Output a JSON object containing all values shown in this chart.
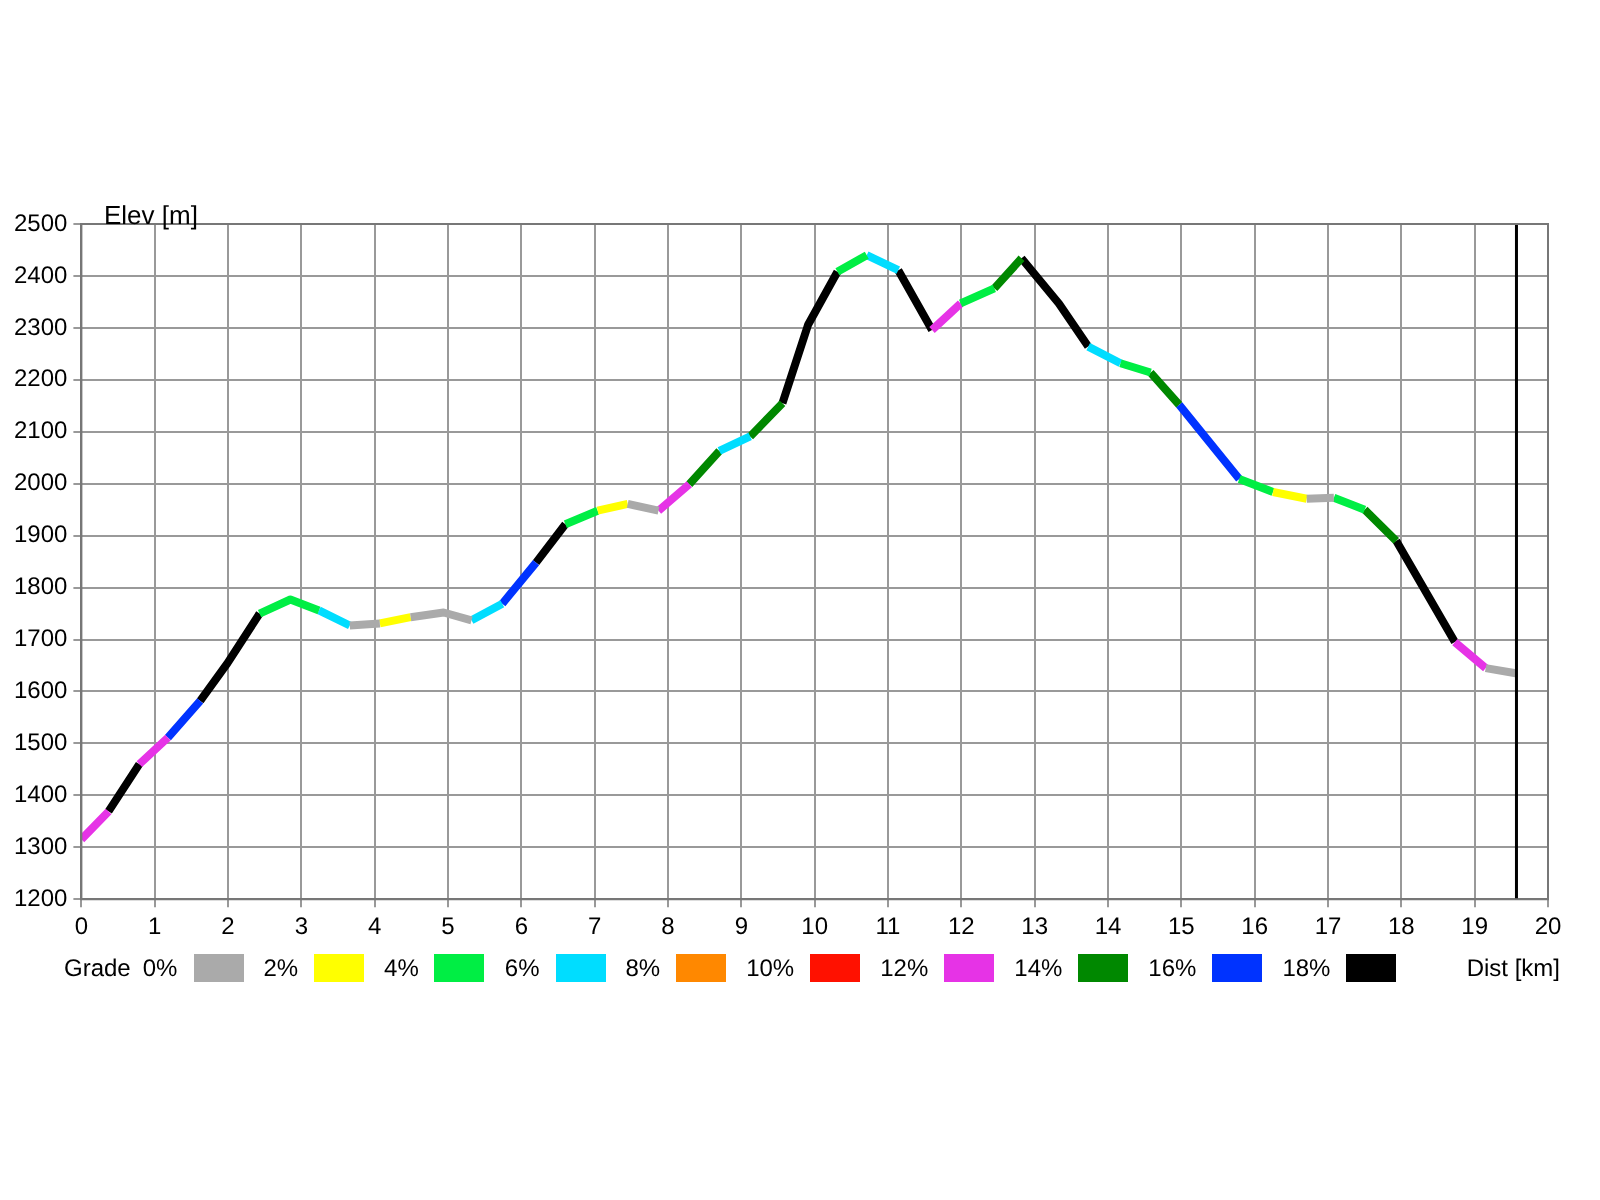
{
  "chart_data": {
    "type": "line",
    "xlabel": "Dist [km]",
    "ylabel": "Elev [m]",
    "legend_title": "Grade",
    "legend": "bottom",
    "grid": true,
    "xlim": [
      0,
      20
    ],
    "xticks": [
      0,
      1,
      2,
      3,
      4,
      5,
      6,
      7,
      8,
      9,
      10,
      11,
      12,
      13,
      14,
      15,
      16,
      17,
      18,
      19,
      20
    ],
    "ylim": [
      1200,
      2500
    ],
    "yticks": [
      1200,
      1300,
      1400,
      1500,
      1600,
      1700,
      1800,
      1900,
      2000,
      2100,
      2200,
      2300,
      2400,
      2500
    ],
    "ref_lines": [
      {
        "axis": "x",
        "value": 19.57,
        "color": "#000000"
      }
    ],
    "series": [
      {
        "name": "0%",
        "color": "#aaaaaa",
        "x": [
          3.66,
          4.07,
          null,
          4.49,
          4.94,
          5.32,
          null,
          7.45,
          7.87,
          null,
          16.71,
          17.08,
          null,
          19.15,
          19.56
        ],
        "values": [
          1727,
          1731,
          null,
          1743,
          1752,
          1737,
          null,
          1961,
          1948,
          null,
          1971,
          1973,
          null,
          1645,
          1635
        ]
      },
      {
        "name": "2%",
        "color": "#ffff00",
        "x": [
          4.07,
          4.49,
          null,
          7.04,
          7.45,
          null,
          16.25,
          16.71
        ],
        "values": [
          1731,
          1743,
          null,
          1948,
          1961,
          null,
          1984,
          1971
        ]
      },
      {
        "name": "4%",
        "color": "#00ee44",
        "x": [
          2.43,
          2.85,
          3.24,
          null,
          6.6,
          7.04,
          null,
          10.31,
          10.71,
          null,
          11.99,
          12.45,
          null,
          14.17,
          14.58,
          null,
          15.79,
          16.25,
          null,
          17.08,
          17.5
        ],
        "values": [
          1750,
          1777,
          1756,
          null,
          1922,
          1948,
          null,
          2408,
          2440,
          null,
          2347,
          2376,
          null,
          2232,
          2214,
          null,
          2009,
          1984,
          null,
          1973,
          1950
        ]
      },
      {
        "name": "6%",
        "color": "#00ddff",
        "x": [
          3.24,
          3.66,
          null,
          5.32,
          5.74,
          null,
          8.7,
          9.12,
          null,
          10.71,
          11.14,
          null,
          13.73,
          14.17
        ],
        "values": [
          1756,
          1727,
          null,
          1737,
          1769,
          null,
          2063,
          2091,
          null,
          2440,
          2411,
          null,
          2264,
          2232
        ]
      },
      {
        "name": "8%",
        "color": "#ff8800"
      },
      {
        "name": "10%",
        "color": "#ff1100"
      },
      {
        "name": "12%",
        "color": "#e633e6",
        "x": [
          0,
          0.37,
          null,
          0.79,
          1.18,
          null,
          7.87,
          8.29,
          null,
          11.6,
          11.99,
          null,
          18.73,
          19.15
        ],
        "values": [
          1315,
          1369,
          null,
          1460,
          1511,
          null,
          1948,
          1999,
          null,
          2296,
          2347,
          null,
          1695,
          1645
        ]
      },
      {
        "name": "14%",
        "color": "#008800",
        "x": [
          8.29,
          8.7,
          null,
          9.12,
          9.56,
          null,
          12.45,
          12.82,
          null,
          14.58,
          14.97,
          null,
          17.5,
          17.93
        ],
        "values": [
          1999,
          2063,
          null,
          2091,
          2155,
          null,
          2376,
          2434,
          null,
          2214,
          2152,
          null,
          1950,
          1890
        ]
      },
      {
        "name": "16%",
        "color": "#0033ff",
        "x": [
          1.18,
          1.62,
          null,
          5.74,
          6.2,
          null,
          14.97,
          15.79
        ],
        "values": [
          1511,
          1582,
          null,
          1769,
          1848,
          null,
          2152,
          2009
        ]
      },
      {
        "name": "18%",
        "color": "#000000",
        "x": [
          0.37,
          0.79,
          null,
          1.62,
          1.99,
          2.43,
          null,
          6.2,
          6.6,
          null,
          9.56,
          9.91,
          10.31,
          null,
          11.14,
          11.6,
          null,
          12.82,
          13.33,
          13.73,
          null,
          17.93,
          18.73
        ],
        "values": [
          1369,
          1460,
          null,
          1582,
          1654,
          1750,
          null,
          1848,
          1922,
          null,
          2155,
          2306,
          2408,
          null,
          2411,
          2296,
          null,
          2434,
          2347,
          2264,
          null,
          1890,
          1695
        ]
      }
    ]
  }
}
